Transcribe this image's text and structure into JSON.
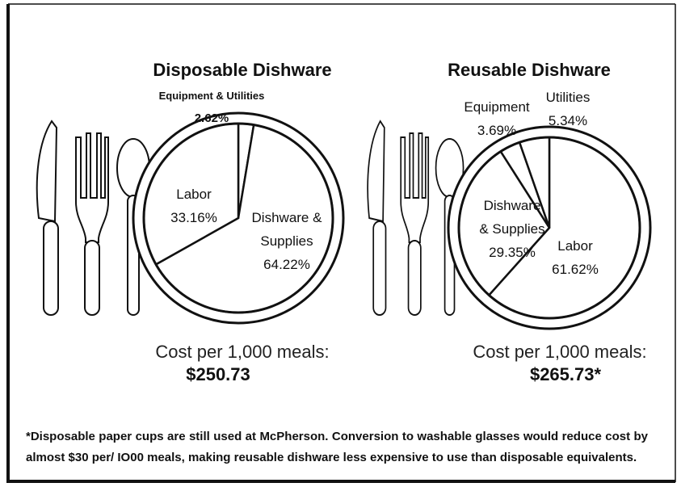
{
  "chart_data": [
    {
      "type": "pie",
      "title": "Disposable Dishware",
      "color": "#ffffff",
      "categories": [
        "Equipment & Utilities",
        "Dishware & Supplies",
        "Labor"
      ],
      "values": [
        2.62,
        64.22,
        33.16
      ],
      "value_labels": [
        "2.62%",
        "64.22%",
        "33.16%"
      ],
      "cost_label": "Cost per 1,000 meals:",
      "cost": "$250.73"
    },
    {
      "type": "pie",
      "title": "Reusable Dishware",
      "color": "#ffffff",
      "categories": [
        "Labor",
        "Dishware & Supplies",
        "Equipment",
        "Utilities"
      ],
      "values": [
        61.62,
        29.35,
        3.69,
        5.34
      ],
      "value_labels": [
        "61.62%",
        "29.35%",
        "3.69%",
        "5.34%"
      ],
      "cost_label": "Cost per 1,000 meals:",
      "cost": "$265.73*"
    }
  ],
  "footnote": "*Disposable paper cups are still used at McPherson. Conversion to washable glasses would reduce cost by almost $30 per/ IO00 meals, making reusable dishware less expensive to use than disposable equivalents."
}
